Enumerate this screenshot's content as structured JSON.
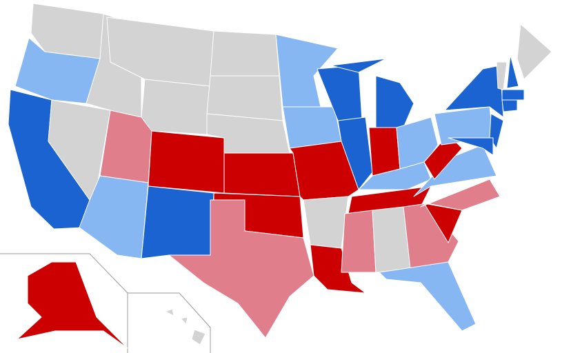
{
  "map": {
    "colors": [
      "#1a63d0",
      "#86b7f2",
      "#cc0000",
      "#e07e8c",
      "#d3d3d3"
    ]
  }
}
